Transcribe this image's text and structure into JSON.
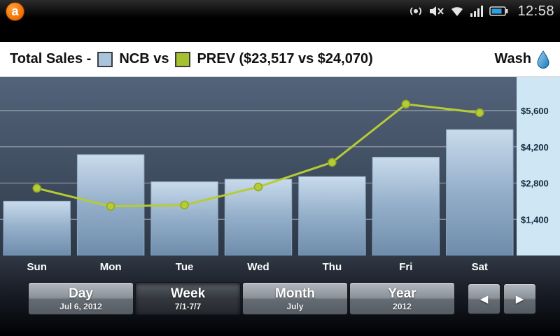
{
  "status_bar": {
    "time": "12:58"
  },
  "header": {
    "title_prefix": "Total Sales -",
    "ncb_label": "NCB vs",
    "prev_label": "PREV ($23,517 vs $24,070)",
    "wash_label": "Wash"
  },
  "chart_data": {
    "type": "bar",
    "title": "Total Sales - NCB vs PREV",
    "categories": [
      "Sun",
      "Mon",
      "Tue",
      "Wed",
      "Thu",
      "Fri",
      "Sat"
    ],
    "series": [
      {
        "name": "NCB",
        "type": "bar",
        "values": [
          2100,
          3900,
          2850,
          2950,
          3050,
          3800,
          4867
        ],
        "total": "$23,517"
      },
      {
        "name": "PREV",
        "type": "line",
        "values": [
          2600,
          1900,
          1950,
          2650,
          3600,
          5850,
          5520
        ],
        "total": "$24,070"
      }
    ],
    "yticks": [
      1400,
      2800,
      4200,
      5600
    ],
    "ytick_labels": [
      "$1,400",
      "$2,800",
      "$4,200",
      "$5,600"
    ],
    "ylim": [
      0,
      6900
    ],
    "grid": true,
    "legend_position": "top"
  },
  "controls": {
    "tabs": [
      {
        "label": "Day",
        "sub": "Jul 6, 2012"
      },
      {
        "label": "Week",
        "sub": "7/1-7/7"
      },
      {
        "label": "Month",
        "sub": "July"
      },
      {
        "label": "Year",
        "sub": "2012"
      }
    ],
    "prev_icon": "◀",
    "next_icon": "▶"
  },
  "colors": {
    "bar_top": "#c9dbec",
    "bar_bottom": "#6e8cab",
    "bar_stroke": "#8fa9c4",
    "line": "#b6cc33",
    "dot_stroke": "#93a626",
    "axis_strip": "#cfe7f4",
    "tick_text": "#142c40",
    "gridline": "rgba(255,255,255,0.55)"
  }
}
